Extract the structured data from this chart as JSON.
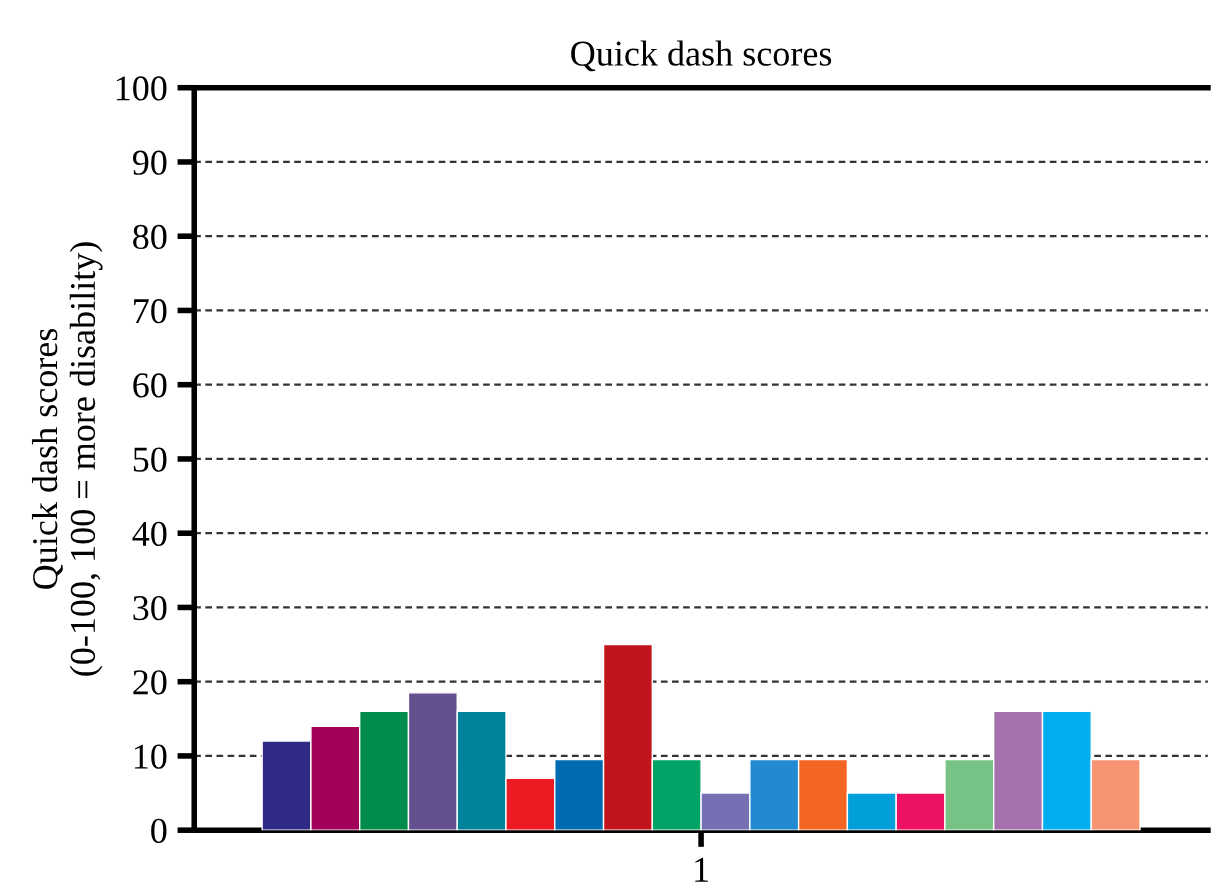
{
  "chart_data": {
    "type": "bar",
    "title": "Quick dash scores",
    "ylabel": "Quick dash scores\n(0-100, 100 = more disability)",
    "categories": [
      "1"
    ],
    "series": [
      {
        "color": "#2e2a86",
        "values": [
          12
        ]
      },
      {
        "color": "#a3005c",
        "values": [
          14
        ]
      },
      {
        "color": "#008c4a",
        "values": [
          16
        ]
      },
      {
        "color": "#64508f",
        "values": [
          18.5
        ]
      },
      {
        "color": "#00829a",
        "values": [
          16
        ]
      },
      {
        "color": "#ed1c24",
        "values": [
          7
        ]
      },
      {
        "color": "#006bb0",
        "values": [
          9.5
        ]
      },
      {
        "color": "#c1141c",
        "values": [
          25
        ]
      },
      {
        "color": "#00a466",
        "values": [
          9.5
        ]
      },
      {
        "color": "#7570b3",
        "values": [
          5
        ]
      },
      {
        "color": "#2389d0",
        "values": [
          9.5
        ]
      },
      {
        "color": "#f26522",
        "values": [
          9.5
        ]
      },
      {
        "color": "#009fda",
        "values": [
          5
        ]
      },
      {
        "color": "#ed1164",
        "values": [
          5
        ]
      },
      {
        "color": "#77c386",
        "values": [
          9.5
        ]
      },
      {
        "color": "#a66fae",
        "values": [
          16
        ]
      },
      {
        "color": "#00aeef",
        "values": [
          16
        ]
      },
      {
        "color": "#f79573",
        "values": [
          9.5
        ]
      }
    ],
    "ylim": [
      0,
      100
    ],
    "yticks": [
      0,
      10,
      20,
      30,
      40,
      50,
      60,
      70,
      80,
      90,
      100
    ],
    "grid": "y"
  }
}
